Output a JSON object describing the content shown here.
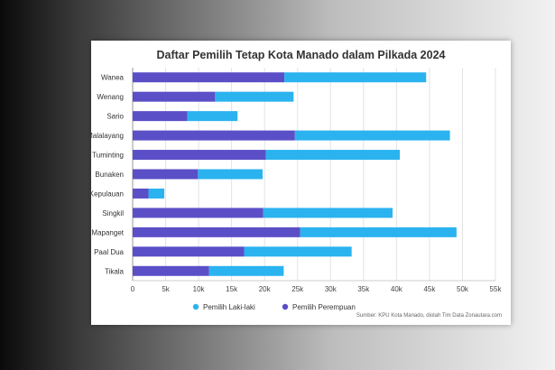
{
  "chart_data": {
    "type": "bar",
    "orientation": "horizontal",
    "stacked": true,
    "title": "Daftar Pemilih Tetap Kota Manado dalam Pilkada 2024",
    "categories": [
      "Wanea",
      "Wenang",
      "Sario",
      "Malalayang",
      "Tuminting",
      "Bunaken",
      "Bunaken Kepulauan",
      "Singkil",
      "Mapanget",
      "Paal Dua",
      "Tikala"
    ],
    "series": [
      {
        "name": "Pemilih Perempuan",
        "color": "#5b4fc7",
        "values": [
          23000,
          12500,
          8300,
          24600,
          20200,
          9900,
          2400,
          19800,
          25400,
          16900,
          11600
        ]
      },
      {
        "name": "Pemilih Laki-laki",
        "color": "#2bb3ef",
        "values": [
          21500,
          11900,
          7600,
          23500,
          20300,
          9800,
          2400,
          19600,
          23700,
          16300,
          11300
        ]
      }
    ],
    "xlim": [
      0,
      55000
    ],
    "xticks": [
      0,
      5000,
      10000,
      15000,
      20000,
      25000,
      30000,
      35000,
      40000,
      45000,
      50000,
      55000
    ],
    "xtick_labels": [
      "0",
      "5k",
      "10k",
      "15k",
      "20k",
      "25k",
      "30k",
      "35k",
      "40k",
      "45k",
      "50k",
      "55k"
    ],
    "legend": {
      "placement": "bottom",
      "items": [
        "Pemilih Laki-laki",
        "Pemilih Perempuan"
      ]
    },
    "grid": true,
    "source": "Sumber: KPU Kota Manado, diolah Tim Data Zonautara.com"
  }
}
